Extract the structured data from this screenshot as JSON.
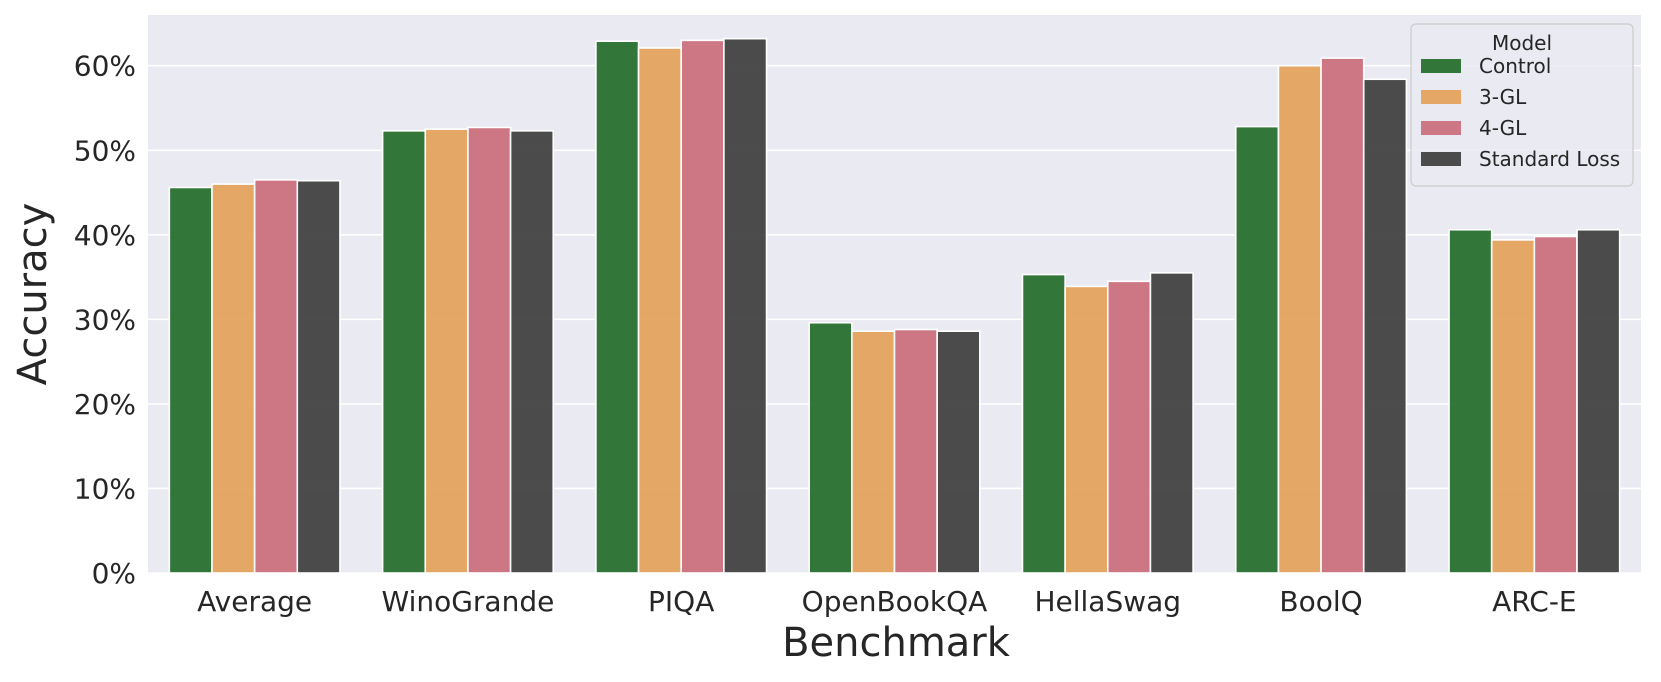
{
  "chart_data": {
    "type": "bar",
    "categories": [
      "Average",
      "WinoGrande",
      "PIQA",
      "OpenBookQA",
      "HellaSwag",
      "BoolQ",
      "ARC-E"
    ],
    "series": [
      {
        "name": "Control",
        "color": "#226b2a",
        "values": [
          45.6,
          52.3,
          62.9,
          29.6,
          35.3,
          52.8,
          40.6
        ]
      },
      {
        "name": "3-GL",
        "color": "#e4a15a",
        "values": [
          46.0,
          52.5,
          62.1,
          28.6,
          33.9,
          60.0,
          39.4
        ]
      },
      {
        "name": "4-GL",
        "color": "#ca6b7b",
        "values": [
          46.5,
          52.7,
          63.0,
          28.8,
          34.5,
          60.9,
          39.8
        ]
      },
      {
        "name": "Standard Loss",
        "color": "#3d3d3d",
        "values": [
          46.4,
          52.3,
          63.2,
          28.6,
          35.5,
          58.4,
          40.6
        ]
      }
    ],
    "xlabel": "Benchmark",
    "ylabel": "Accuracy",
    "ylim": [
      0,
      66
    ],
    "yticks": [
      "0%",
      "10%",
      "20%",
      "30%",
      "40%",
      "50%",
      "60%"
    ],
    "grid": true,
    "legend": {
      "title": "Model",
      "placement": "top-right"
    }
  }
}
